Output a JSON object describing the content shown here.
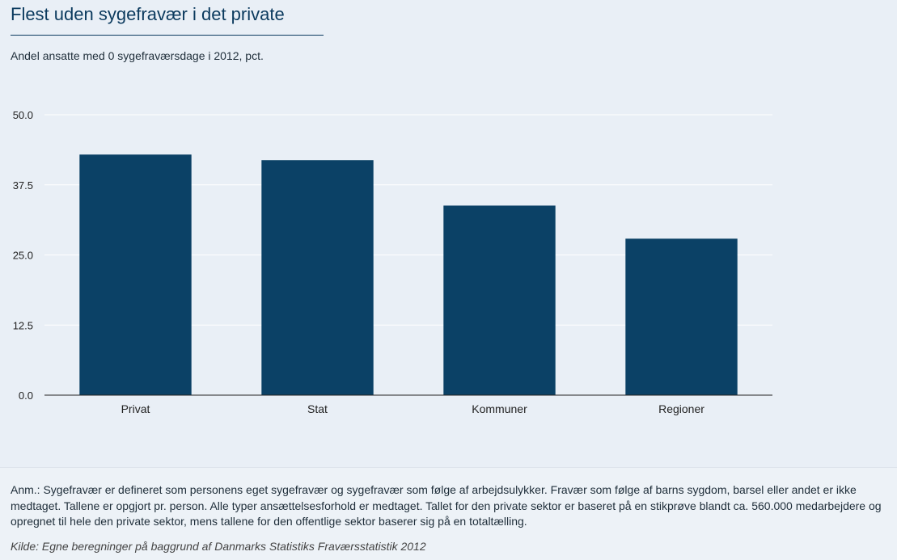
{
  "title": "Flest uden sygefravær i det private",
  "subtitle": "Andel ansatte med 0 sygefraværsdage i 2012, pct.",
  "colors": {
    "bar": "#0b4166",
    "title": "#0b3a5e",
    "background": "#e9eff6"
  },
  "chart_data": {
    "type": "bar",
    "categories": [
      "Privat",
      "Stat",
      "Kommuner",
      "Regioner"
    ],
    "values": [
      42.9,
      41.9,
      33.8,
      27.9
    ],
    "ylim": [
      0,
      50
    ],
    "yticks": [
      "0.0",
      "12.5",
      "25.0",
      "37.5",
      "50.0"
    ],
    "ytick_values": [
      0,
      12.5,
      25,
      37.5,
      50
    ],
    "grid": true,
    "xlabel": "",
    "ylabel": ""
  },
  "footer": {
    "note_prefix": "Anm.:",
    "note_text": " Sygefravær er defineret som personens eget sygefravær og sygefravær som følge af arbejdsulykker. Fravær som følge af barns sygdom, barsel eller andet er ikke medtaget. Tallene er opgjort pr. person. Alle typer ansættelsesforhold er medtaget. Tallet for den private sektor er baseret på en stikprøve blandt ca. 560.000 medarbejdere og opregnet til hele den private sektor, mens tallene for den offentlige sektor baserer sig på en totaltælling.",
    "source_prefix": "Kilde:",
    "source_text": " Egne beregninger på baggrund af Danmarks Statistiks Fraværsstatistik 2012"
  }
}
